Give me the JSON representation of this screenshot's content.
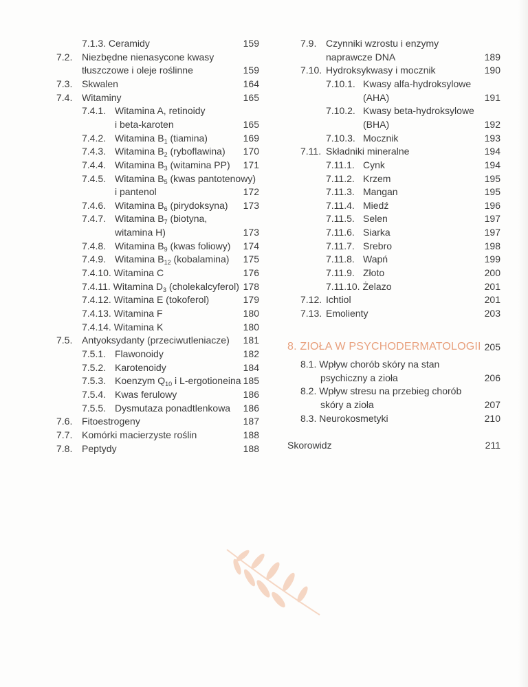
{
  "toc_left": [
    {
      "style": "inline",
      "num": "7.1.3.",
      "lines": [
        "Ceramidy"
      ],
      "page": "159"
    },
    {
      "style": "l1",
      "num": "7.2.",
      "lines": [
        "Niezbędne nienasycone kwasy",
        "tłuszczowe i oleje roślinne"
      ],
      "page": "159"
    },
    {
      "style": "l1",
      "num": "7.3.",
      "lines": [
        "Skwalen"
      ],
      "page": "164"
    },
    {
      "style": "l1",
      "num": "7.4.",
      "lines": [
        "Witaminy"
      ],
      "page": "165"
    },
    {
      "style": "l2",
      "num": "7.4.1.",
      "lines": [
        "Witamina A, retinoidy",
        "i beta-karoten"
      ],
      "page": "165"
    },
    {
      "style": "l2",
      "num": "7.4.2.",
      "lines": [
        {
          "text": "Witamina B",
          "sub": "1",
          "rest": " (tiamina)"
        }
      ],
      "page": "169"
    },
    {
      "style": "l2",
      "num": "7.4.3.",
      "lines": [
        {
          "text": "Witamina B",
          "sub": "2",
          "rest": " (ryboflawina)"
        }
      ],
      "page": "170"
    },
    {
      "style": "l2",
      "num": "7.4.4.",
      "lines": [
        {
          "text": "Witamina B",
          "sub": "3",
          "rest": " (witamina PP)"
        }
      ],
      "page": "171"
    },
    {
      "style": "l2",
      "num": "7.4.5.",
      "lines": [
        {
          "text": "Witamina B",
          "sub": "5",
          "rest": " (kwas pantotenowy)"
        },
        "i pantenol"
      ],
      "page": "172"
    },
    {
      "style": "l2",
      "num": "7.4.6.",
      "lines": [
        {
          "text": "Witamina B",
          "sub": "6",
          "rest": " (pirydoksyna)"
        }
      ],
      "page": "173"
    },
    {
      "style": "l2",
      "num": "7.4.7.",
      "lines": [
        {
          "text": "Witamina B",
          "sub": "7",
          "rest": " (biotyna,"
        },
        "witamina H)"
      ],
      "page": "173"
    },
    {
      "style": "l2",
      "num": "7.4.8.",
      "lines": [
        {
          "text": "Witamina B",
          "sub": "9",
          "rest": " (kwas foliowy)"
        }
      ],
      "page": "174"
    },
    {
      "style": "l2",
      "num": "7.4.9.",
      "lines": [
        {
          "text": "Witamina B",
          "sub": "12",
          "rest": " (kobalamina)"
        }
      ],
      "page": "175"
    },
    {
      "style": "inline",
      "num": "7.4.10.",
      "lines": [
        "Witamina C"
      ],
      "page": "176"
    },
    {
      "style": "inline",
      "num": "7.4.11.",
      "lines": [
        {
          "text": "Witamina D",
          "sub": "3",
          "rest": " (cholekalcyferol)"
        }
      ],
      "page": "178"
    },
    {
      "style": "inline",
      "num": "7.4.12.",
      "lines": [
        "Witamina E (tokoferol)"
      ],
      "page": "179"
    },
    {
      "style": "inline",
      "num": "7.4.13.",
      "lines": [
        "Witamina F"
      ],
      "page": "180"
    },
    {
      "style": "inline",
      "num": "7.4.14.",
      "lines": [
        "Witamina K"
      ],
      "page": "180"
    },
    {
      "style": "l1",
      "num": "7.5.",
      "lines": [
        "Antyoksydanty (przeciwutleniacze)"
      ],
      "page": "181"
    },
    {
      "style": "l2",
      "num": "7.5.1.",
      "lines": [
        "Flawonoidy"
      ],
      "page": "182"
    },
    {
      "style": "l2",
      "num": "7.5.2.",
      "lines": [
        "Karotenoidy"
      ],
      "page": "184"
    },
    {
      "style": "l2",
      "num": "7.5.3.",
      "lines": [
        {
          "text": "Koenzym Q",
          "sub": "10",
          "rest": " i L-ergotioneina"
        }
      ],
      "page": "185"
    },
    {
      "style": "l2",
      "num": "7.5.4.",
      "lines": [
        "Kwas ferulowy"
      ],
      "page": "186"
    },
    {
      "style": "l2",
      "num": "7.5.5.",
      "lines": [
        "Dysmutaza ponadtlenkowa"
      ],
      "page": "186"
    },
    {
      "style": "l1",
      "num": "7.6.",
      "lines": [
        "Fitoestrogeny"
      ],
      "page": "187"
    },
    {
      "style": "l1",
      "num": "7.7.",
      "lines": [
        "Komórki macierzyste roślin"
      ],
      "page": "188"
    },
    {
      "style": "l1",
      "num": "7.8.",
      "lines": [
        "Peptydy"
      ],
      "page": "188"
    }
  ],
  "toc_right": [
    {
      "style": "l1",
      "num": "7.9.",
      "lines": [
        "Czynniki wzrostu i enzymy",
        "naprawcze DNA"
      ],
      "page": "189"
    },
    {
      "style": "l1",
      "num": "7.10.",
      "lines": [
        "Hydroksykwasy i mocznik"
      ],
      "page": "190"
    },
    {
      "style": "l2",
      "num": "7.10.1.",
      "lines": [
        "Kwasy alfa-hydroksylowe",
        "(AHA)"
      ],
      "page": "191"
    },
    {
      "style": "l2",
      "num": "7.10.2.",
      "lines": [
        "Kwasy beta-hydroksylowe",
        "(BHA)"
      ],
      "page": "192"
    },
    {
      "style": "l2",
      "num": "7.10.3.",
      "lines": [
        "Mocznik"
      ],
      "page": "193"
    },
    {
      "style": "l1",
      "num": "7.11.",
      "lines": [
        "Składniki mineralne"
      ],
      "page": "194"
    },
    {
      "style": "l2",
      "num": "7.11.1.",
      "lines": [
        "Cynk"
      ],
      "page": "194"
    },
    {
      "style": "l2",
      "num": "7.11.2.",
      "lines": [
        "Krzem"
      ],
      "page": "195"
    },
    {
      "style": "l2",
      "num": "7.11.3.",
      "lines": [
        "Mangan"
      ],
      "page": "195"
    },
    {
      "style": "l2",
      "num": "7.11.4.",
      "lines": [
        "Miedź"
      ],
      "page": "196"
    },
    {
      "style": "l2",
      "num": "7.11.5.",
      "lines": [
        "Selen"
      ],
      "page": "197"
    },
    {
      "style": "l2",
      "num": "7.11.6.",
      "lines": [
        "Siarka"
      ],
      "page": "197"
    },
    {
      "style": "l2",
      "num": "7.11.7.",
      "lines": [
        "Srebro"
      ],
      "page": "198"
    },
    {
      "style": "l2",
      "num": "7.11.8.",
      "lines": [
        "Wapń"
      ],
      "page": "199"
    },
    {
      "style": "l2",
      "num": "7.11.9.",
      "lines": [
        "Złoto"
      ],
      "page": "200"
    },
    {
      "style": "inline",
      "num": "7.11.10.",
      "lines": [
        "Żelazo"
      ],
      "page": "201"
    },
    {
      "style": "l1",
      "num": "7.12.",
      "lines": [
        "Ichtiol"
      ],
      "page": "201"
    },
    {
      "style": "l1",
      "num": "7.13.",
      "lines": [
        "Emolienty"
      ],
      "page": "203"
    }
  ],
  "chapter8": {
    "title": "8. ZIOŁA W PSYCHODERMATOLOGII",
    "page": "205",
    "color": "#e8a07d",
    "entries": [
      {
        "style": "inline8",
        "num": "8.1.",
        "lines": [
          "Wpływ chorób skóry na stan",
          "psychiczny a zioła"
        ],
        "page": "206"
      },
      {
        "style": "inline8",
        "num": "8.2.",
        "lines": [
          "Wpływ stresu na przebieg chorób",
          "skóry a zioła"
        ],
        "page": "207"
      },
      {
        "style": "inline8",
        "num": "8.3.",
        "lines": [
          "Neurokosmetyki"
        ],
        "page": "210"
      }
    ]
  },
  "index": {
    "label": "Skorowidz",
    "page": "211"
  },
  "decoration": {
    "icon": "leaf-branch-icon",
    "color": "#f5d6c3"
  }
}
